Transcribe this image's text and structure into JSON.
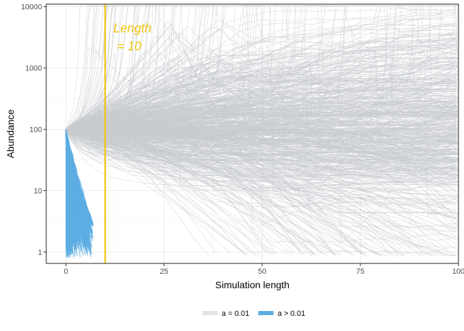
{
  "chart_data": {
    "type": "line",
    "title": "",
    "xlabel": "Simulation length",
    "ylabel": "Abundance",
    "xlim": [
      -5,
      100
    ],
    "xticks": [
      0,
      25,
      50,
      75,
      100
    ],
    "xtick_labels": [
      "0",
      "25",
      "50",
      "75",
      "100"
    ],
    "y_scale": "log10",
    "ylim": [
      0.65,
      11000
    ],
    "yticks": [
      1,
      10,
      100,
      1000,
      10000
    ],
    "ytick_labels": [
      "1",
      "10",
      "100",
      "1000",
      "10000"
    ],
    "grid": true,
    "legend_position": "bottom",
    "series": [
      {
        "name": "a = 0.01",
        "color": "#c8cbcf",
        "legend_color": "#e3e3e3",
        "note_values": "hundreds of simulation trajectories, each starting at abundance 100 at time 0 and running until extinction (abundance < 1) or length 100; peaks reach about 7000 near length 33",
        "values": [
          100,
          150,
          300,
          1200,
          2500,
          6500,
          1500,
          600,
          900,
          400,
          150
        ]
      },
      {
        "name": "a > 0.01",
        "color": "#5dade2",
        "legend_color": "#5dade2",
        "note_values": "many short trajectories starting at abundance 100 at time 0, all going extinct before length about 7",
        "values": [
          100,
          30,
          5,
          1
        ]
      }
    ],
    "reference_line": {
      "x": 10,
      "color": "#f1c40f",
      "label_line1": "Length",
      "label_line2": " = 10"
    }
  }
}
